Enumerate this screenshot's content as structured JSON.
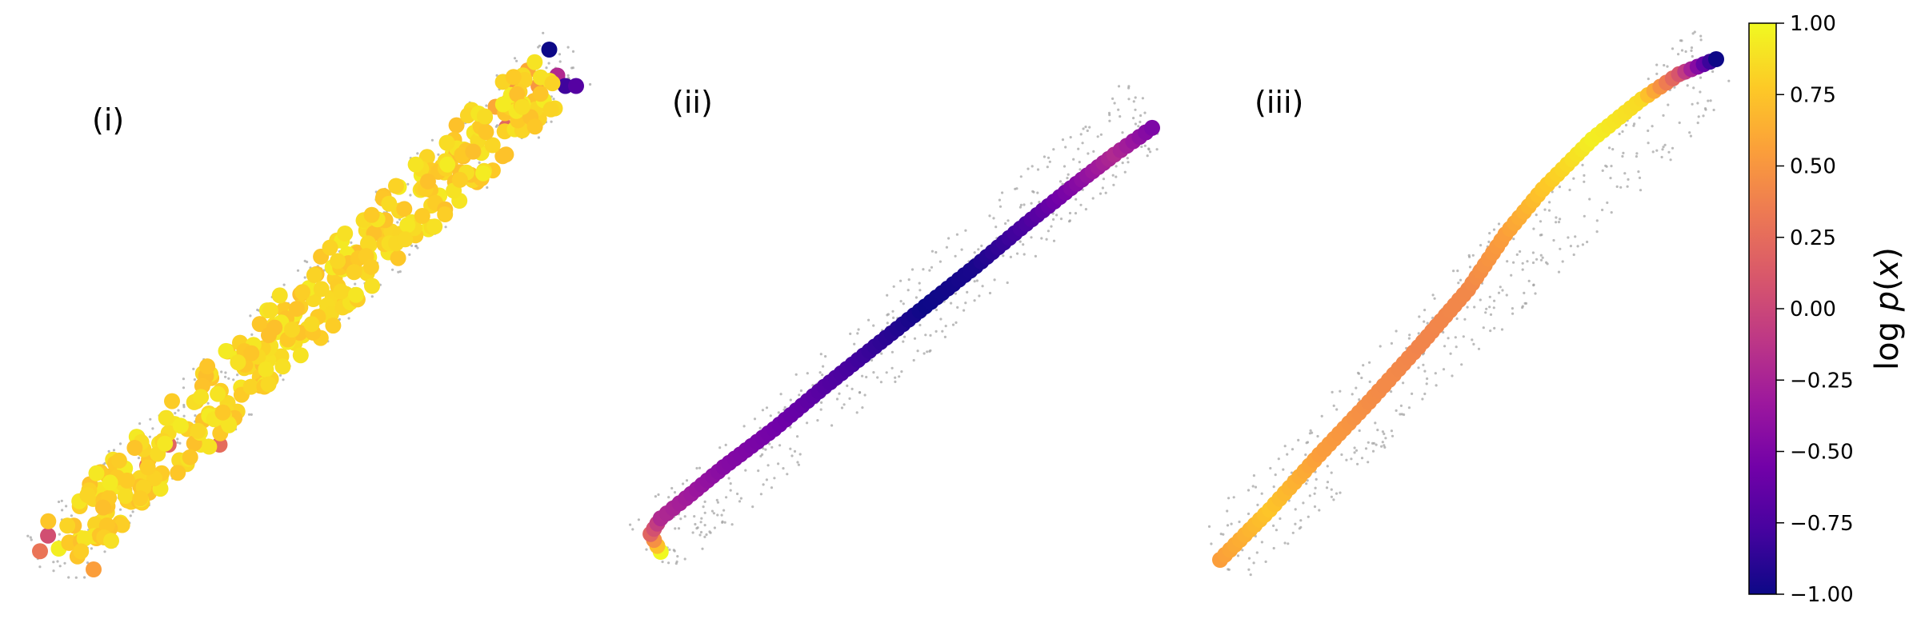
{
  "chart_data": [
    {
      "type": "scatter",
      "panel_label": "(i)",
      "axes_visible": false,
      "color_encoding": "log p(x)",
      "background_points": {
        "color": "#9e9e9e",
        "description_visible": "small grey points along a diagonal band"
      },
      "series": [
        {
          "points": [
            {
              "x": -1.0,
              "y": -0.93,
              "v": 0.3
            },
            {
              "x": -0.97,
              "y": -0.87,
              "v": 0.05
            },
            {
              "x": -0.93,
              "y": -0.92,
              "v": 0.95
            },
            {
              "x": -0.86,
              "y": -0.95,
              "v": 0.75
            },
            {
              "x": -0.8,
              "y": -1.0,
              "v": 0.55
            },
            {
              "x": -0.78,
              "y": -0.86,
              "v": 0.8
            },
            {
              "x": -0.75,
              "y": -0.78,
              "v": 0.85
            },
            {
              "x": -0.7,
              "y": -0.82,
              "v": 0.9
            },
            {
              "x": -0.66,
              "y": -0.74,
              "v": 0.8
            },
            {
              "x": -0.62,
              "y": -0.7,
              "v": 0.85
            },
            {
              "x": -0.6,
              "y": -0.6,
              "v": 0.3
            },
            {
              "x": -0.55,
              "y": -0.65,
              "v": 0.9
            },
            {
              "x": -0.52,
              "y": -0.52,
              "v": 0.2
            },
            {
              "x": -0.48,
              "y": -0.58,
              "v": 0.85
            },
            {
              "x": -0.45,
              "y": -0.46,
              "v": 0.8
            },
            {
              "x": -0.4,
              "y": -0.52,
              "v": 0.9
            },
            {
              "x": -0.37,
              "y": -0.4,
              "v": 0.85
            },
            {
              "x": -0.33,
              "y": -0.52,
              "v": 0.25
            },
            {
              "x": -0.3,
              "y": -0.36,
              "v": 0.85
            },
            {
              "x": -0.25,
              "y": -0.3,
              "v": 0.9
            },
            {
              "x": -0.22,
              "y": -0.22,
              "v": 0.85
            },
            {
              "x": -0.18,
              "y": -0.26,
              "v": 0.8
            },
            {
              "x": -0.14,
              "y": -0.14,
              "v": 0.9
            },
            {
              "x": -0.1,
              "y": -0.18,
              "v": 0.85
            },
            {
              "x": -0.06,
              "y": -0.04,
              "v": 0.8
            },
            {
              "x": -0.02,
              "y": -0.1,
              "v": 0.9
            },
            {
              "x": 0.02,
              "y": 0.04,
              "v": 0.85
            },
            {
              "x": 0.06,
              "y": -0.02,
              "v": 0.9
            },
            {
              "x": 0.1,
              "y": 0.12,
              "v": 0.8
            },
            {
              "x": 0.14,
              "y": 0.06,
              "v": 0.85
            },
            {
              "x": 0.18,
              "y": 0.22,
              "v": 0.9
            },
            {
              "x": 0.22,
              "y": 0.14,
              "v": 0.85
            },
            {
              "x": 0.26,
              "y": 0.3,
              "v": 0.8
            },
            {
              "x": 0.3,
              "y": 0.22,
              "v": 0.9
            },
            {
              "x": 0.34,
              "y": 0.38,
              "v": 0.85
            },
            {
              "x": 0.38,
              "y": 0.3,
              "v": 0.55
            },
            {
              "x": 0.42,
              "y": 0.46,
              "v": 0.9
            },
            {
              "x": 0.46,
              "y": 0.4,
              "v": 0.85
            },
            {
              "x": 0.5,
              "y": 0.55,
              "v": 0.8
            },
            {
              "x": 0.54,
              "y": 0.6,
              "v": 0.9
            },
            {
              "x": 0.58,
              "y": 0.52,
              "v": 0.85
            },
            {
              "x": 0.62,
              "y": 0.68,
              "v": 0.9
            },
            {
              "x": 0.66,
              "y": 0.74,
              "v": 0.8
            },
            {
              "x": 0.7,
              "y": 0.78,
              "v": 0.6
            },
            {
              "x": 0.74,
              "y": 0.7,
              "v": 0.2
            },
            {
              "x": 0.78,
              "y": 0.86,
              "v": 0.5
            },
            {
              "x": 0.82,
              "y": 0.92,
              "v": 0.6
            },
            {
              "x": 0.86,
              "y": 0.86,
              "v": 0.5
            },
            {
              "x": 0.9,
              "y": 1.0,
              "v": -1.0
            },
            {
              "x": 0.93,
              "y": 0.9,
              "v": -0.2
            },
            {
              "x": 0.96,
              "y": 0.86,
              "v": -0.8
            },
            {
              "x": 1.0,
              "y": 0.86,
              "v": -0.7
            }
          ]
        }
      ]
    },
    {
      "type": "line",
      "panel_label": "(ii)",
      "axes_visible": false,
      "color_encoding": "log p(x)",
      "description_visible": "thick curve of circular markers through a diagonal band of grey points",
      "series": [
        {
          "points": [
            {
              "x": -0.95,
              "y": -1.0,
              "v": 1.0
            },
            {
              "x": -0.99,
              "y": -0.92,
              "v": 0.2
            },
            {
              "x": -0.95,
              "y": -0.85,
              "v": -0.2
            },
            {
              "x": -0.85,
              "y": -0.76,
              "v": -0.3
            },
            {
              "x": -0.7,
              "y": -0.62,
              "v": -0.45
            },
            {
              "x": -0.5,
              "y": -0.45,
              "v": -0.55
            },
            {
              "x": -0.3,
              "y": -0.26,
              "v": -0.7
            },
            {
              "x": -0.1,
              "y": -0.08,
              "v": -0.85
            },
            {
              "x": 0.1,
              "y": 0.1,
              "v": -1.0
            },
            {
              "x": 0.3,
              "y": 0.28,
              "v": -0.95
            },
            {
              "x": 0.5,
              "y": 0.47,
              "v": -0.75
            },
            {
              "x": 0.7,
              "y": 0.65,
              "v": -0.45
            },
            {
              "x": 0.85,
              "y": 0.78,
              "v": -0.2
            },
            {
              "x": 1.0,
              "y": 0.9,
              "v": -0.5
            }
          ]
        }
      ]
    },
    {
      "type": "line",
      "panel_label": "(iii)",
      "axes_visible": false,
      "color_encoding": "log p(x)",
      "description_visible": "thick curve of circular markers through a diagonal band of grey points",
      "series": [
        {
          "points": [
            {
              "x": -1.0,
              "y": -1.0,
              "v": 0.55
            },
            {
              "x": -0.8,
              "y": -0.8,
              "v": 0.75
            },
            {
              "x": -0.6,
              "y": -0.58,
              "v": 0.55
            },
            {
              "x": -0.4,
              "y": -0.37,
              "v": 0.45
            },
            {
              "x": -0.2,
              "y": -0.15,
              "v": 0.4
            },
            {
              "x": 0.0,
              "y": 0.08,
              "v": 0.42
            },
            {
              "x": 0.15,
              "y": 0.3,
              "v": 0.55
            },
            {
              "x": 0.3,
              "y": 0.48,
              "v": 0.75
            },
            {
              "x": 0.5,
              "y": 0.68,
              "v": 0.95
            },
            {
              "x": 0.7,
              "y": 0.84,
              "v": 0.85
            },
            {
              "x": 0.85,
              "y": 0.94,
              "v": 0.1
            },
            {
              "x": 1.0,
              "y": 1.0,
              "v": -1.0
            }
          ]
        }
      ]
    }
  ],
  "colorbar": {
    "label": "log p(x)",
    "label_math": {
      "prefix": "log ",
      "italic_p": "p",
      "open": "(",
      "italic_x": "x",
      "close": ")"
    },
    "ticks": [
      "1.00",
      "0.75",
      "0.50",
      "0.25",
      "0.00",
      "−0.25",
      "−0.50",
      "−0.75",
      "−1.00"
    ],
    "tick_values": [
      1.0,
      0.75,
      0.5,
      0.25,
      0.0,
      -0.25,
      -0.5,
      -0.75,
      -1.0
    ],
    "range": [
      -1.0,
      1.0
    ],
    "colormap": "plasma",
    "colormap_stops": [
      "#0d0887",
      "#46039f",
      "#7201a8",
      "#9c179e",
      "#bd3786",
      "#d8576b",
      "#ed7953",
      "#fb9f3a",
      "#fdca26",
      "#f0f921"
    ]
  }
}
